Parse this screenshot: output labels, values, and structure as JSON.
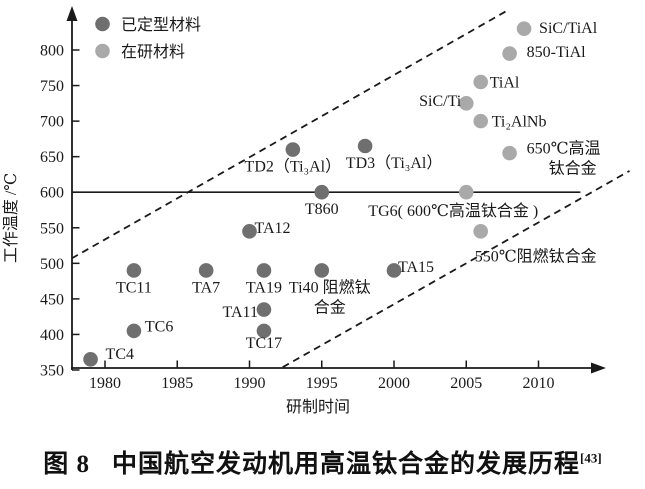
{
  "figure_caption": {
    "prefix": "图 8",
    "text": "中国航空发动机用高温钛合金的发展历程",
    "reference": "[43]"
  },
  "chart_data": {
    "type": "scatter",
    "title": "中国航空发动机用高温钛合金的发展历程",
    "xlabel": "研制时间",
    "ylabel": "工作温度 /℃",
    "x_ticks": [
      1980,
      1985,
      1990,
      1995,
      2000,
      2005,
      2010
    ],
    "y_ticks": [
      350,
      400,
      450,
      500,
      550,
      600,
      650,
      700,
      750,
      800
    ],
    "xlim": [
      1977.7,
      2014.5
    ],
    "ylim": [
      348,
      857
    ],
    "grid": false,
    "legend": {
      "position": "top-left",
      "entries": [
        {
          "series": "finalized",
          "label": "已定型材料"
        },
        {
          "series": "in_research",
          "label": "在研材料"
        }
      ]
    },
    "colors": {
      "finalized": "#6f6f6f",
      "in_research": "#a9a9a9",
      "axis": "#1a1a1a"
    },
    "reference_line": {
      "y": 600,
      "x1": 1977.7,
      "x2": 2012.9
    },
    "trend_lines": [
      {
        "name": "upper-dashed",
        "x1": 1977.7,
        "y1": 507,
        "x2": 2007.8,
        "y2": 855
      },
      {
        "name": "lower-dashed",
        "x1": 1992.3,
        "y1": 354,
        "x2": 2016.3,
        "y2": 630
      }
    ],
    "series": [
      {
        "name": "已定型材料",
        "key": "finalized",
        "points": [
          {
            "id": "tc4",
            "label": "TC4",
            "x": 1979,
            "y": 365,
            "label_pos": "right",
            "label_dx": 4,
            "label_dy": -6
          },
          {
            "id": "tc6",
            "label": "TC6",
            "x": 1982,
            "y": 405,
            "label_pos": "right",
            "label_dy": -5
          },
          {
            "id": "tc11",
            "label": "TC11",
            "x": 1982,
            "y": 490,
            "label_pos": "below"
          },
          {
            "id": "ta7",
            "label": "TA7",
            "x": 1987,
            "y": 490,
            "label_pos": "below"
          },
          {
            "id": "ta12",
            "label": "TA12",
            "x": 1990,
            "y": 545,
            "label_pos": "right",
            "label_dx": -6,
            "label_dy": -4
          },
          {
            "id": "ta19",
            "label": "TA19",
            "x": 1991,
            "y": 490,
            "label_pos": "below"
          },
          {
            "id": "ta11",
            "label": "TA11",
            "x": 1991,
            "y": 435,
            "label_pos": "left",
            "label_dx": 5,
            "label_dy": 2
          },
          {
            "id": "tc17",
            "label": "TC17",
            "x": 1991,
            "y": 405,
            "label_pos": "below",
            "label_dy": -5
          },
          {
            "id": "td2",
            "label": "TD2（Ti₃Al）",
            "x": 1993,
            "y": 660,
            "label_pos": "below"
          },
          {
            "id": "t860",
            "label": "T860",
            "x": 1995,
            "y": 600,
            "label_pos": "below"
          },
          {
            "id": "ti40",
            "label": "Ti40 阻燃钛合金",
            "label_lines": [
              "Ti40 阻燃钛",
              "合金"
            ],
            "x": 1995,
            "y": 490,
            "label_pos": "below",
            "label_dx": 8
          },
          {
            "id": "td3",
            "label": "TD3（Ti₃Al）",
            "x": 1998,
            "y": 665,
            "label_pos": "below",
            "label_dx": 29
          },
          {
            "id": "ta15",
            "label": "TA15",
            "x": 2000,
            "y": 490,
            "label_pos": "right",
            "label_dx": -7,
            "label_dy": -4
          }
        ]
      },
      {
        "name": "在研材料",
        "key": "in_research",
        "points": [
          {
            "id": "sic-ti",
            "label": "SiC/Ti",
            "x": 2005,
            "y": 725,
            "label_pos": "left",
            "label_dx": 6,
            "label_dy": -3
          },
          {
            "id": "tg6",
            "label": "TG6( 600℃高温钛合金 )",
            "x": 2005,
            "y": 600,
            "label_pos": "below",
            "label_dx": -13,
            "label_dy": 2
          },
          {
            "id": "tial",
            "label": "TiAl",
            "x": 2006,
            "y": 755,
            "label_pos": "right",
            "label_dx": -2
          },
          {
            "id": "ti2alnb",
            "label": "Ti₂AlNb",
            "x": 2006,
            "y": 700,
            "label_pos": "right"
          },
          {
            "id": "flame-resistant-550c",
            "label": "550℃阻燃钛合金",
            "x": 2006,
            "y": 545,
            "label_pos": "below",
            "label_dx": 55,
            "label_dy": 8
          },
          {
            "id": "850-tial",
            "label": "850-TiAl",
            "x": 2008,
            "y": 795,
            "label_pos": "right",
            "label_dx": 6,
            "label_dy": -2
          },
          {
            "id": "ht-650c",
            "label": "650℃高温钛合金",
            "label_lines": [
              "650℃高温",
              "钛合金"
            ],
            "x": 2008,
            "y": 655,
            "label_pos": "right",
            "label_dx": 6,
            "label_dy": -5
          },
          {
            "id": "sic-tial",
            "label": "SiC/TiAl",
            "x": 2009,
            "y": 830,
            "label_pos": "right",
            "label_dx": 4,
            "label_dy": -1
          }
        ]
      }
    ]
  }
}
